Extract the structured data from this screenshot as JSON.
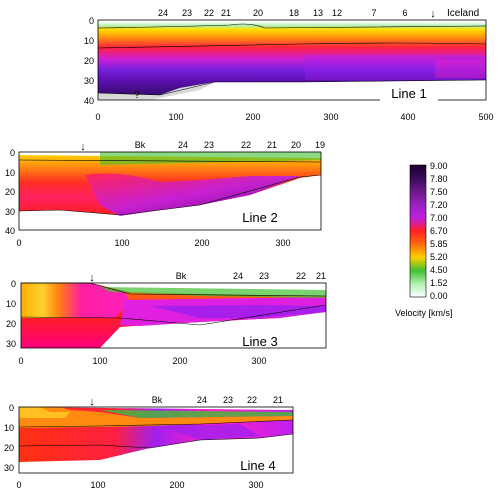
{
  "panels": [
    {
      "id": "line1",
      "label": "Line 1",
      "x_ticks": [
        "0",
        "100",
        "200",
        "300",
        "400",
        "500"
      ],
      "y_ticks": [
        "0",
        "10",
        "20",
        "30",
        "40"
      ],
      "top_labels": [
        "24",
        "23",
        "22",
        "21",
        "20",
        "18",
        "13",
        "12",
        "7",
        "6"
      ],
      "end_label": "Iceland",
      "unknown_mark": "?",
      "arrow": "↓"
    },
    {
      "id": "line2",
      "label": "Line 2",
      "x_ticks": [
        "0",
        "100",
        "200",
        "300"
      ],
      "y_ticks": [
        "0",
        "10",
        "20",
        "30",
        "40"
      ],
      "top_labels": [
        "Bk",
        "24",
        "23",
        "22",
        "21",
        "20",
        "19"
      ],
      "arrow": "↓"
    },
    {
      "id": "line3",
      "label": "Line 3",
      "x_ticks": [
        "0",
        "100",
        "200",
        "300"
      ],
      "y_ticks": [
        "0",
        "10",
        "20",
        "30"
      ],
      "top_labels": [
        "Bk",
        "24",
        "23",
        "22",
        "21"
      ],
      "arrow": "↓"
    },
    {
      "id": "line4",
      "label": "Line 4",
      "x_ticks": [
        "0",
        "100",
        "200",
        "300"
      ],
      "y_ticks": [
        "0",
        "10",
        "20",
        "30"
      ],
      "top_labels": [
        "Bk",
        "24",
        "23",
        "22",
        "21"
      ],
      "arrow": "↓"
    }
  ],
  "colorbar": {
    "title": "Velocity [km/s]",
    "ticks": [
      "9.00",
      "7.80",
      "7.50",
      "7.20",
      "7.00",
      "6.70",
      "5.85",
      "5.20",
      "4.50",
      "1.52",
      "0.00"
    ],
    "colors": [
      "#1a0030",
      "#3a0a5a",
      "#6a1a8a",
      "#9a20c0",
      "#c020e0",
      "#ff2020",
      "#ff6a10",
      "#ffd000",
      "#40c030",
      "#b0f0b0",
      "#ffffff"
    ]
  }
}
